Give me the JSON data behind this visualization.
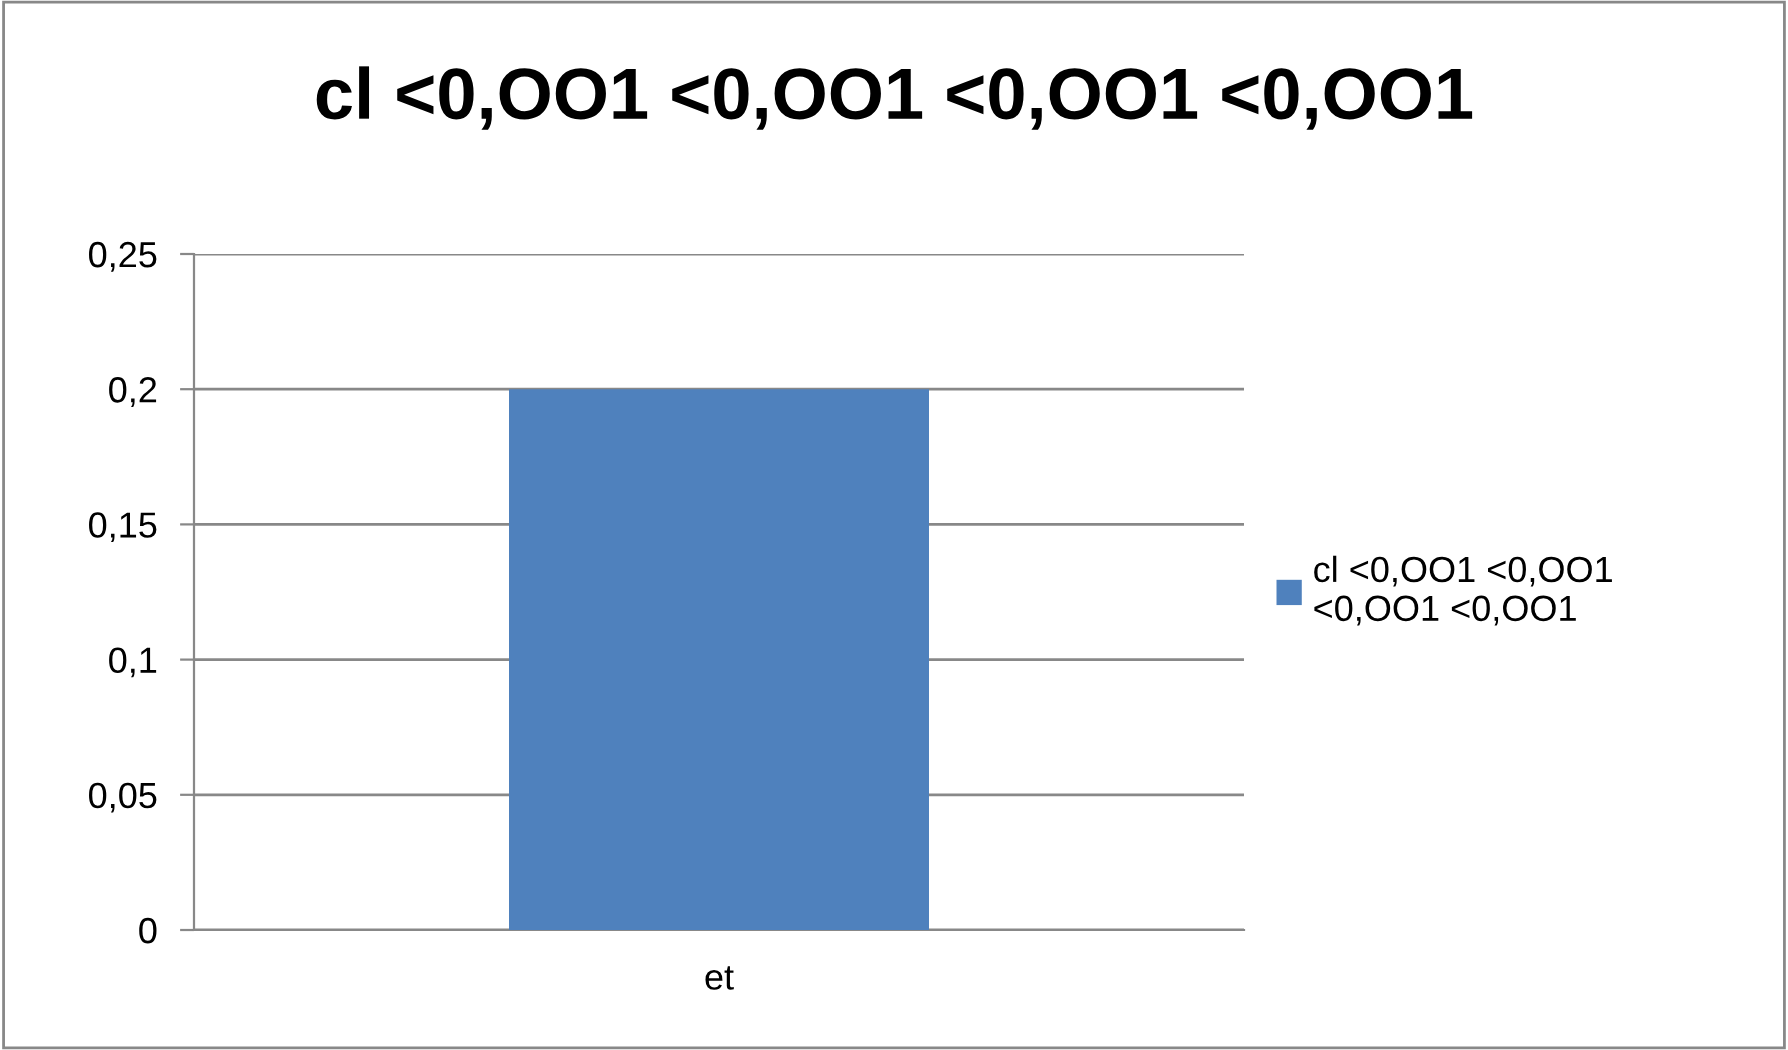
{
  "chart_data": {
    "type": "bar",
    "title": "cl <0,OO1 <0,OO1 <0,OO1 <0,OO1",
    "categories": [
      "et"
    ],
    "series": [
      {
        "name": "cl <0,OO1 <0,OO1\n<0,OO1 <0,OO1",
        "color": "#4f81bd",
        "values": [
          0.2
        ]
      }
    ],
    "ylim": [
      0,
      0.25
    ],
    "yticks": [
      {
        "value": 0,
        "label": "0"
      },
      {
        "value": 0.05,
        "label": "0,05"
      },
      {
        "value": 0.1,
        "label": "0,1"
      },
      {
        "value": 0.15,
        "label": "0,15"
      },
      {
        "value": 0.2,
        "label": "0,2"
      },
      {
        "value": 0.25,
        "label": "0,25"
      }
    ],
    "grid": "y",
    "legend": "right"
  }
}
